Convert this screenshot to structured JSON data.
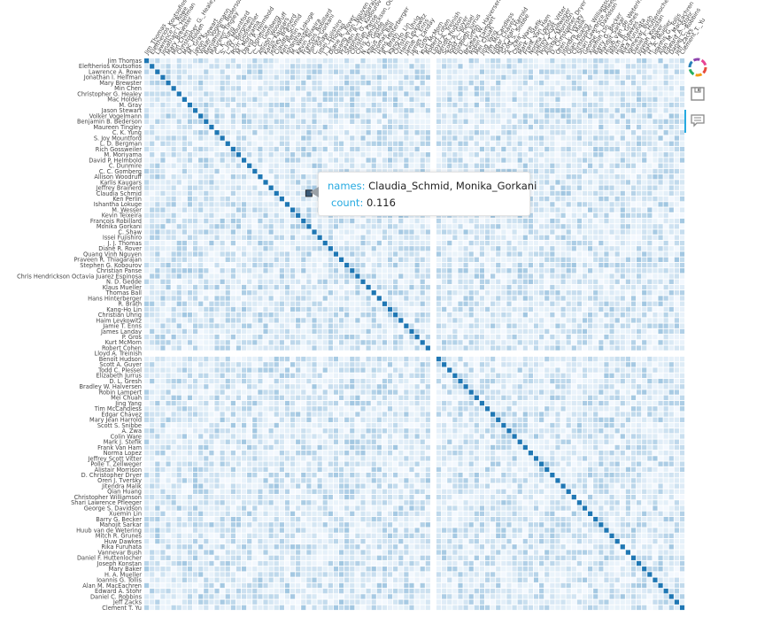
{
  "chart_data": {
    "type": "heatmap",
    "names": [
      "Jim_Thomas",
      "Eleftherios_Koutsofios",
      "Lawrence_A._Rowe",
      "Jonathan_I._Helfman",
      "Mary_Brewster",
      "Min_Chen",
      "Christopher_G._Healey",
      "Mac_Holden",
      "M._Gray",
      "Jason_Stewart",
      "Volker_Vogelmann",
      "Benjamin_B._Bederson",
      "Maureen_Tingley",
      "C._K._Yung",
      "S._Joy_Mountford",
      "L._D._Bergman",
      "Rich_Gossweiler",
      "M._Moriyama",
      "David_P._Helmbold",
      "C._Dunmire",
      "C._C._Gomberg",
      "Allison_Woodruff",
      "Karlis_Kaugars",
      "Jeffrey_Brainerd",
      "Claudia_Schmid",
      "Ken_Perlin",
      "Ishantha_Lokuge",
      "M._Wesser",
      "Kevin_Teixeira",
      "François_Robillard",
      "Monika_Gorkani",
      "C._Shaw",
      "Issei_Fujishiro",
      "J._J._Thomas",
      "Diane_R._Rover",
      "Quang_Vinh_Nguyen",
      "Praveen_R._Thiagarajan",
      "Stephen_G._Kobourov",
      "Christian_Panse",
      "Chris_Hendrickson_Octavia_Juarez_Espinosa",
      "N._D._Gedde",
      "Klaus_Mueller",
      "Thomas_Ball",
      "Hans_Hinterberger",
      "R._Brath",
      "Kang-Ho_Lin",
      "Christian_Uhrig",
      "Haim_Levkowitz",
      "Jamie_T._Enns",
      "James_Landay",
      "P._Gros",
      "Kurt_McMorn",
      "Robert_Cohen",
      "Lloyd_A._Treinish",
      "Benoît_Hudson",
      "Scott_A._Guyer",
      "Todd_C._Plessel",
      "Elizabeth_Jurrus",
      "D._L._Gresh",
      "Bradley_W._Halversen",
      "Robin_Lampert",
      "Mei_Chuah",
      "Jing_Yang",
      "Tim_McCandless",
      "Edgar_Chávez",
      "Mary_Jean_Harrold",
      "Scott_S._Snibbe",
      "A._Zwa",
      "Colin_Ware",
      "Mark_J._Stefik",
      "Frank_Van_Ham",
      "Norma_Lopez",
      "Jeffrey_Scott_Vitter",
      "Polle_T._Zellweger",
      "Alistair_Morrison",
      "D._Christopher_Dryer",
      "Oren_J._Tversky",
      "Jitendra_Malik",
      "Qian_Huang",
      "Christopher_Williamson",
      "Shari_Lawrence_Pfleeger",
      "George_S._Davidson",
      "Xuemin_Lin",
      "Barry_G._Becker",
      "Manojit_Sarkar",
      "Huub_van_de_Wetering",
      "Mitch_R._Grunes",
      "Huw_Dawkes",
      "Rika_Furuhata",
      "Vannevar_Bush",
      "Daniel_F._Huttenlocher",
      "Joseph_Konstan",
      "Mary_Baker",
      "H._A._Mueller",
      "Ioannis_G._Tollis",
      "Alan_M._MacEachren",
      "Edward_A._Stohr",
      "Daniel_C._Robbins",
      "Jeff_Zacks",
      "Clement_T._Yu"
    ],
    "diagonal_value": 1.0,
    "value_range": [
      0,
      1
    ],
    "empty_row_index": 53,
    "color_low": "#f7fbff",
    "color_high": "#1f77b4",
    "highlight": {
      "row": "Claudia_Schmid",
      "col": "Monika_Gorkani",
      "value": 0.116
    }
  },
  "tooltip": {
    "names_key": "names:",
    "names_value": "Claudia_Schmid, Monika_Gorkani",
    "count_key": "count:",
    "count_value": "0.116"
  },
  "toolbar": {
    "tools": [
      {
        "name": "bokeh-logo-icon",
        "active": false
      },
      {
        "name": "save-icon",
        "active": false
      },
      {
        "name": "hover-tool-icon",
        "active": true
      }
    ]
  }
}
